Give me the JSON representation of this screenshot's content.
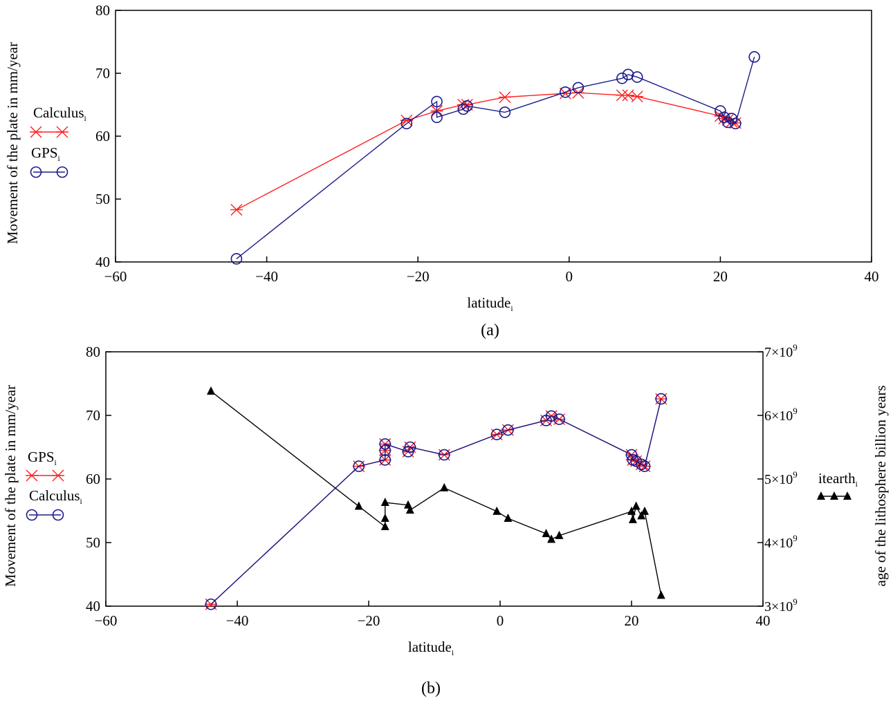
{
  "chart_data": [
    {
      "type": "line",
      "panel_label": "(a)",
      "xlabel": "latitude",
      "xlabel_sub": "i",
      "ylabel": "Movement of the plate in mm/year",
      "xlim": [
        -60,
        40
      ],
      "ylim": [
        40,
        80
      ],
      "xticks": [
        -60,
        -40,
        -20,
        0,
        20,
        40
      ],
      "yticks": [
        40,
        50,
        60,
        70,
        80
      ],
      "grid": false,
      "legend_placement": "left",
      "x": [
        -44,
        -21.5,
        -17.5,
        -17.5,
        -14,
        -13.5,
        -8.5,
        -0.5,
        1.2,
        7,
        7.8,
        9,
        20,
        20.5,
        21,
        21.5,
        22,
        24.5
      ],
      "series": [
        {
          "name": "Calculus",
          "sub": "i",
          "color": "#ff2020",
          "marker": "x",
          "values": [
            48.3,
            62.5,
            64,
            64,
            65,
            65,
            66.2,
            66.8,
            66.9,
            66.5,
            66.5,
            66.3,
            63.2,
            62.8,
            62.6,
            62.3,
            62.1,
            null
          ]
        },
        {
          "name": "GPS",
          "sub": "i",
          "color": "#1a1a8c",
          "marker": "o",
          "values": [
            40.5,
            62,
            65.5,
            63,
            64.3,
            64.8,
            63.8,
            67,
            67.7,
            69.2,
            69.8,
            69.4,
            64,
            63,
            62.2,
            62.8,
            62,
            72.6
          ]
        }
      ]
    },
    {
      "type": "line",
      "panel_label": "(b)",
      "xlabel": "latitude",
      "xlabel_sub": "i",
      "ylabel": "Movement of the plate in mm/year",
      "y2label": "age of the lithosphere billion years",
      "xlim": [
        -60,
        40
      ],
      "ylim": [
        40,
        80
      ],
      "y2lim": [
        3000000000.0,
        7000000000.0
      ],
      "xticks": [
        -60,
        -40,
        -20,
        0,
        20,
        40
      ],
      "yticks": [
        40,
        50,
        60,
        70,
        80
      ],
      "y2ticks": [
        "3",
        "4",
        "5",
        "6",
        "7"
      ],
      "y2tick_suffix": "×10",
      "y2tick_exp": "9",
      "grid": false,
      "legend_placement": "left and right",
      "x": [
        -44,
        -21.5,
        -17.5,
        -17.5,
        -17.5,
        -14,
        -13.7,
        -8.5,
        -0.5,
        1.2,
        7,
        7.8,
        9,
        20,
        20.2,
        20.7,
        21.5,
        22,
        24.5
      ],
      "series": [
        {
          "name": "GPS",
          "sub": "i",
          "color": "#ff2020",
          "marker": "x",
          "axis": "left",
          "values": [
            40.3,
            62,
            63,
            64.5,
            65.5,
            64.3,
            65,
            63.8,
            67,
            67.7,
            69.2,
            69.9,
            69.4,
            63.8,
            63,
            62.8,
            62.3,
            62,
            72.6
          ]
        },
        {
          "name": "Calculus",
          "sub": "i",
          "color": "#1a1a8c",
          "marker": "o",
          "axis": "left",
          "values": [
            40.3,
            62,
            63,
            64.5,
            65.5,
            64.3,
            65,
            63.8,
            67,
            67.7,
            69.2,
            69.9,
            69.4,
            63.8,
            63,
            62.8,
            62.3,
            62,
            72.6
          ]
        },
        {
          "name": "itearth",
          "sub": "i",
          "color": "#000000",
          "marker": "triangle",
          "axis": "right",
          "values": [
            6380000000.0,
            4570000000.0,
            4250000000.0,
            4380000000.0,
            4630000000.0,
            4590000000.0,
            4510000000.0,
            4860000000.0,
            4490000000.0,
            4380000000.0,
            4140000000.0,
            4050000000.0,
            4110000000.0,
            4490000000.0,
            4360000000.0,
            4570000000.0,
            4420000000.0,
            4490000000.0,
            3170000000.0
          ]
        }
      ]
    }
  ]
}
